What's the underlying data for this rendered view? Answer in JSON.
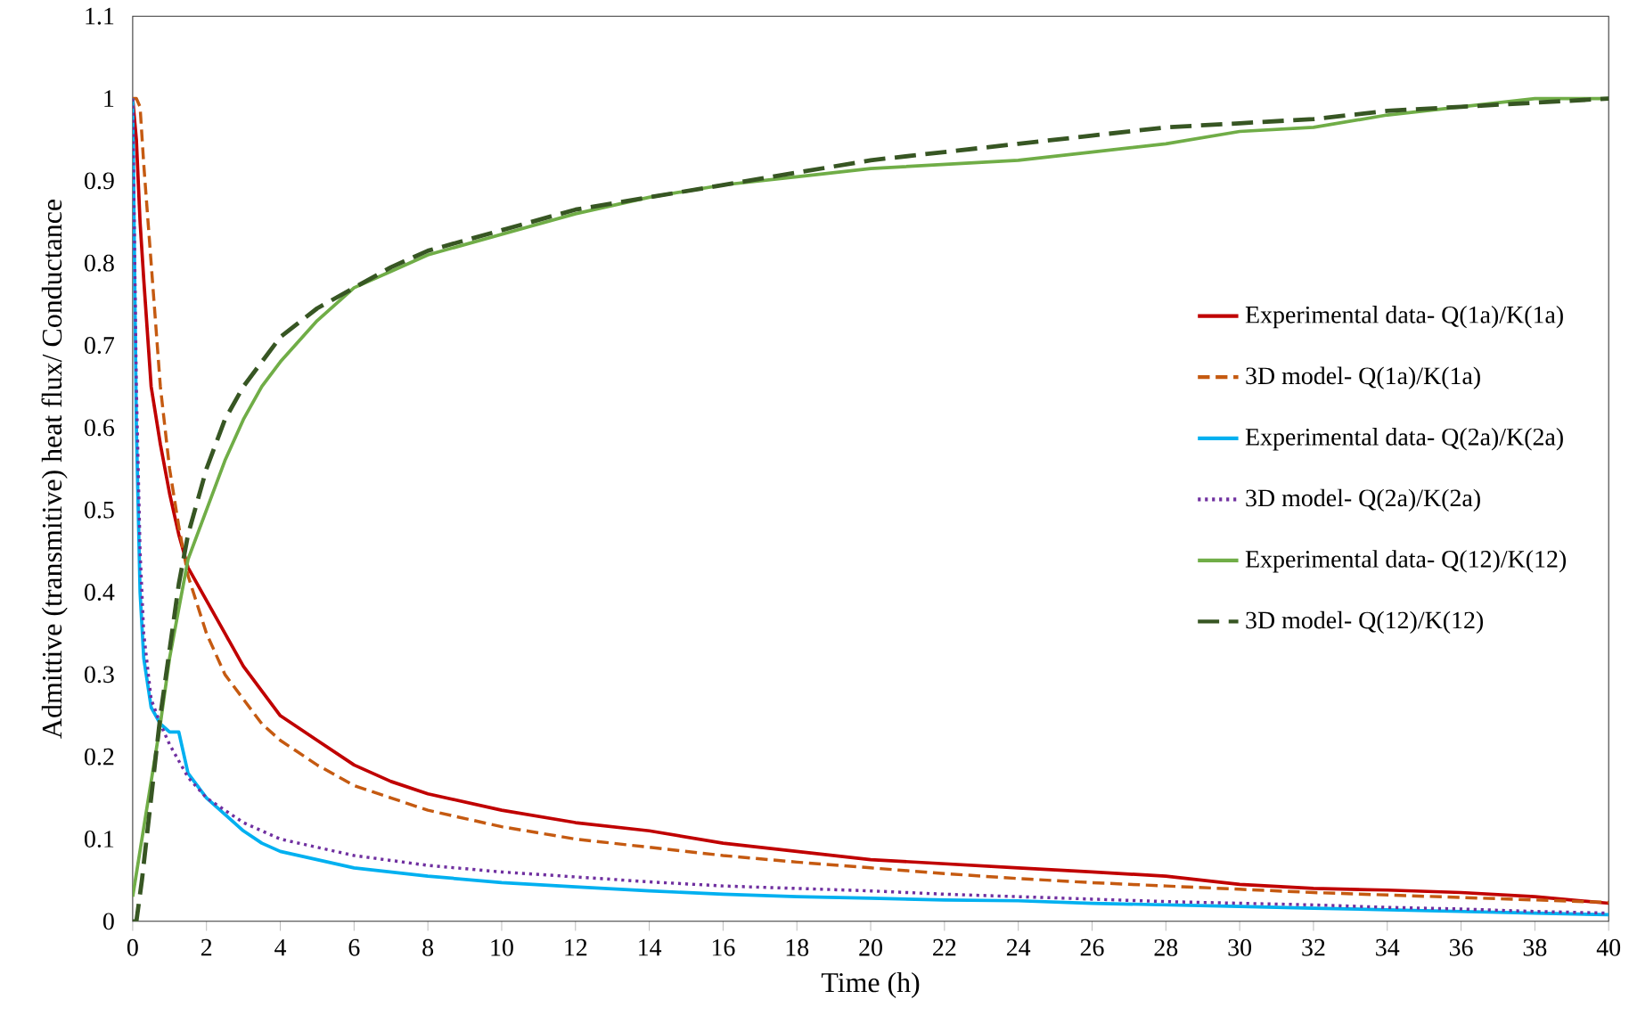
{
  "chart_data": {
    "type": "line",
    "xlabel": "Time (h)",
    "ylabel": "Admittive (transmitive) heat flux/ Conductance",
    "xlim": [
      0,
      40
    ],
    "xticks": [
      0,
      2,
      4,
      6,
      8,
      10,
      12,
      14,
      16,
      18,
      20,
      22,
      24,
      26,
      28,
      30,
      32,
      34,
      36,
      38,
      40
    ],
    "ylim": [
      0,
      1.1
    ],
    "yticks": [
      0,
      0.1,
      0.2,
      0.3,
      0.4,
      0.5,
      0.6,
      0.7,
      0.8,
      0.9,
      1,
      1.1
    ],
    "grid": false,
    "legend": "right",
    "marker": "none",
    "series": [
      {
        "name": "Experimental data- Q(1a)/K(1a)",
        "color": "#c00000",
        "line_style": "solid",
        "x": [
          0,
          0.1,
          0.2,
          0.3,
          0.5,
          0.75,
          1,
          1.25,
          1.5,
          2,
          2.5,
          3,
          3.5,
          4,
          5,
          6,
          7,
          8,
          10,
          12,
          14,
          16,
          18,
          20,
          22,
          24,
          26,
          28,
          30,
          32,
          34,
          36,
          38,
          40
        ],
        "values": [
          1,
          0.95,
          0.85,
          0.78,
          0.65,
          0.58,
          0.52,
          0.47,
          0.43,
          0.39,
          0.35,
          0.31,
          0.28,
          0.25,
          0.22,
          0.19,
          0.17,
          0.155,
          0.135,
          0.12,
          0.11,
          0.095,
          0.085,
          0.075,
          0.07,
          0.065,
          0.06,
          0.055,
          0.045,
          0.04,
          0.038,
          0.035,
          0.03,
          0.022
        ]
      },
      {
        "name": "3D model- Q(1a)/K(1a)",
        "color": "#c55a11",
        "line_style": "dashed",
        "x": [
          0,
          0.1,
          0.2,
          0.3,
          0.5,
          0.75,
          1,
          1.25,
          1.5,
          2,
          2.5,
          3,
          3.5,
          4,
          5,
          6,
          7,
          8,
          10,
          12,
          14,
          16,
          18,
          20,
          22,
          24,
          26,
          28,
          30,
          32,
          34,
          36,
          38,
          40
        ],
        "values": [
          1,
          1,
          0.99,
          0.92,
          0.8,
          0.65,
          0.55,
          0.48,
          0.42,
          0.35,
          0.3,
          0.27,
          0.24,
          0.22,
          0.19,
          0.165,
          0.15,
          0.135,
          0.115,
          0.1,
          0.09,
          0.08,
          0.072,
          0.065,
          0.058,
          0.052,
          0.047,
          0.043,
          0.039,
          0.035,
          0.032,
          0.029,
          0.026,
          0.023
        ]
      },
      {
        "name": "Experimental data- Q(2a)/K(2a)",
        "color": "#00b0f0",
        "line_style": "solid",
        "x": [
          0,
          0.1,
          0.2,
          0.3,
          0.5,
          0.75,
          1,
          1.25,
          1.5,
          2,
          2.5,
          3,
          3.5,
          4,
          5,
          6,
          7,
          8,
          10,
          12,
          14,
          16,
          18,
          20,
          22,
          24,
          26,
          28,
          30,
          32,
          34,
          36,
          38,
          40
        ],
        "values": [
          1,
          0.6,
          0.4,
          0.32,
          0.26,
          0.24,
          0.23,
          0.23,
          0.18,
          0.15,
          0.13,
          0.11,
          0.095,
          0.085,
          0.075,
          0.065,
          0.06,
          0.055,
          0.047,
          0.042,
          0.037,
          0.033,
          0.03,
          0.028,
          0.026,
          0.025,
          0.022,
          0.02,
          0.018,
          0.016,
          0.014,
          0.012,
          0.01,
          0.008
        ]
      },
      {
        "name": "3D model- Q(2a)/K(2a)",
        "color": "#7030a0",
        "line_style": "dotted",
        "x": [
          0,
          0.1,
          0.2,
          0.3,
          0.5,
          0.75,
          1,
          1.25,
          1.5,
          2,
          2.5,
          3,
          3.5,
          4,
          5,
          6,
          7,
          8,
          10,
          12,
          14,
          16,
          18,
          20,
          22,
          24,
          26,
          28,
          30,
          32,
          34,
          36,
          38,
          40
        ],
        "values": [
          1,
          0.65,
          0.45,
          0.35,
          0.27,
          0.24,
          0.215,
          0.195,
          0.175,
          0.15,
          0.135,
          0.12,
          0.11,
          0.1,
          0.09,
          0.08,
          0.074,
          0.068,
          0.06,
          0.054,
          0.048,
          0.043,
          0.04,
          0.037,
          0.033,
          0.03,
          0.027,
          0.024,
          0.022,
          0.02,
          0.017,
          0.015,
          0.012,
          0.01
        ]
      },
      {
        "name": "Experimental data- Q(12)/K(12)",
        "color": "#70ad47",
        "line_style": "solid",
        "x": [
          0,
          0.25,
          0.5,
          0.75,
          1,
          1.25,
          1.5,
          2,
          2.5,
          3,
          3.5,
          4,
          5,
          6,
          7,
          8,
          10,
          12,
          14,
          16,
          18,
          20,
          22,
          24,
          26,
          28,
          30,
          32,
          34,
          36,
          38,
          40
        ],
        "values": [
          0.03,
          0.1,
          0.17,
          0.24,
          0.32,
          0.38,
          0.44,
          0.5,
          0.56,
          0.61,
          0.65,
          0.68,
          0.73,
          0.77,
          0.79,
          0.81,
          0.835,
          0.86,
          0.88,
          0.895,
          0.905,
          0.915,
          0.92,
          0.925,
          0.935,
          0.945,
          0.96,
          0.965,
          0.98,
          0.99,
          1,
          1
        ]
      },
      {
        "name": "3D model- Q(12)/K(12)",
        "color": "#375623",
        "line_style": "dashed",
        "x": [
          0,
          0.1,
          0.25,
          0.5,
          0.75,
          1,
          1.25,
          1.5,
          2,
          2.5,
          3,
          3.5,
          4,
          5,
          6,
          7,
          8,
          10,
          12,
          14,
          16,
          18,
          20,
          22,
          24,
          26,
          28,
          30,
          32,
          34,
          36,
          38,
          40
        ],
        "values": [
          0,
          0,
          0.05,
          0.15,
          0.25,
          0.33,
          0.41,
          0.47,
          0.55,
          0.61,
          0.65,
          0.68,
          0.71,
          0.745,
          0.77,
          0.795,
          0.815,
          0.84,
          0.865,
          0.88,
          0.895,
          0.91,
          0.925,
          0.935,
          0.945,
          0.955,
          0.965,
          0.97,
          0.975,
          0.985,
          0.99,
          0.995,
          1
        ]
      }
    ]
  }
}
